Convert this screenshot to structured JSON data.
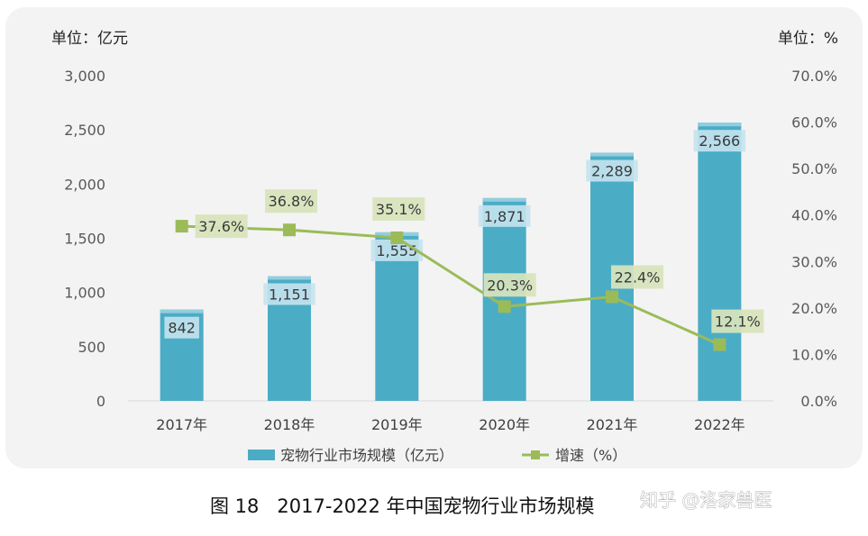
{
  "chart_data": {
    "type": "bar",
    "categories": [
      "2017年",
      "2018年",
      "2019年",
      "2020年",
      "2021年",
      "2022年"
    ],
    "series": [
      {
        "name": "宠物行业市场规模（亿元）",
        "type": "bar",
        "axis": "left",
        "values": [
          842,
          1151,
          1555,
          1871,
          2289,
          2566
        ],
        "labels": [
          "842",
          "1,151",
          "1,555",
          "1,871",
          "2,289",
          "2,566"
        ]
      },
      {
        "name": "增速（%）",
        "type": "line",
        "axis": "right",
        "values": [
          37.6,
          36.8,
          35.1,
          20.3,
          22.4,
          12.1
        ],
        "labels": [
          "37.6%",
          "36.8%",
          "35.1%",
          "20.3%",
          "22.4%",
          "12.1%"
        ]
      }
    ],
    "y_left": {
      "unit_label": "单位：亿元",
      "range": [
        0,
        3000
      ],
      "ticks": [
        0,
        500,
        1000,
        1500,
        2000,
        2500,
        3000
      ],
      "tick_labels": [
        "0",
        "500",
        "1,000",
        "1,500",
        "2,000",
        "2,500",
        "3,000"
      ]
    },
    "y_right": {
      "unit_label": "单位：%",
      "range": [
        0,
        70
      ],
      "ticks": [
        0,
        10,
        20,
        30,
        40,
        50,
        60,
        70
      ],
      "tick_labels": [
        "0.0%",
        "10.0%",
        "20.0%",
        "30.0%",
        "40.0%",
        "50.0%",
        "60.0%",
        "70.0%"
      ]
    },
    "grid": false,
    "legend_position": "bottom",
    "caption": "图 18   2017-2022 年中国宠物行业市场规模",
    "colors": {
      "bar": "#4bacc6",
      "bar_top": "#93cddd",
      "bar_label_bg": "#c5e3ee",
      "line": "#9bbb59",
      "line_label_bg": "#d8e4bc"
    }
  },
  "watermark": "知乎 @洛家兽医"
}
